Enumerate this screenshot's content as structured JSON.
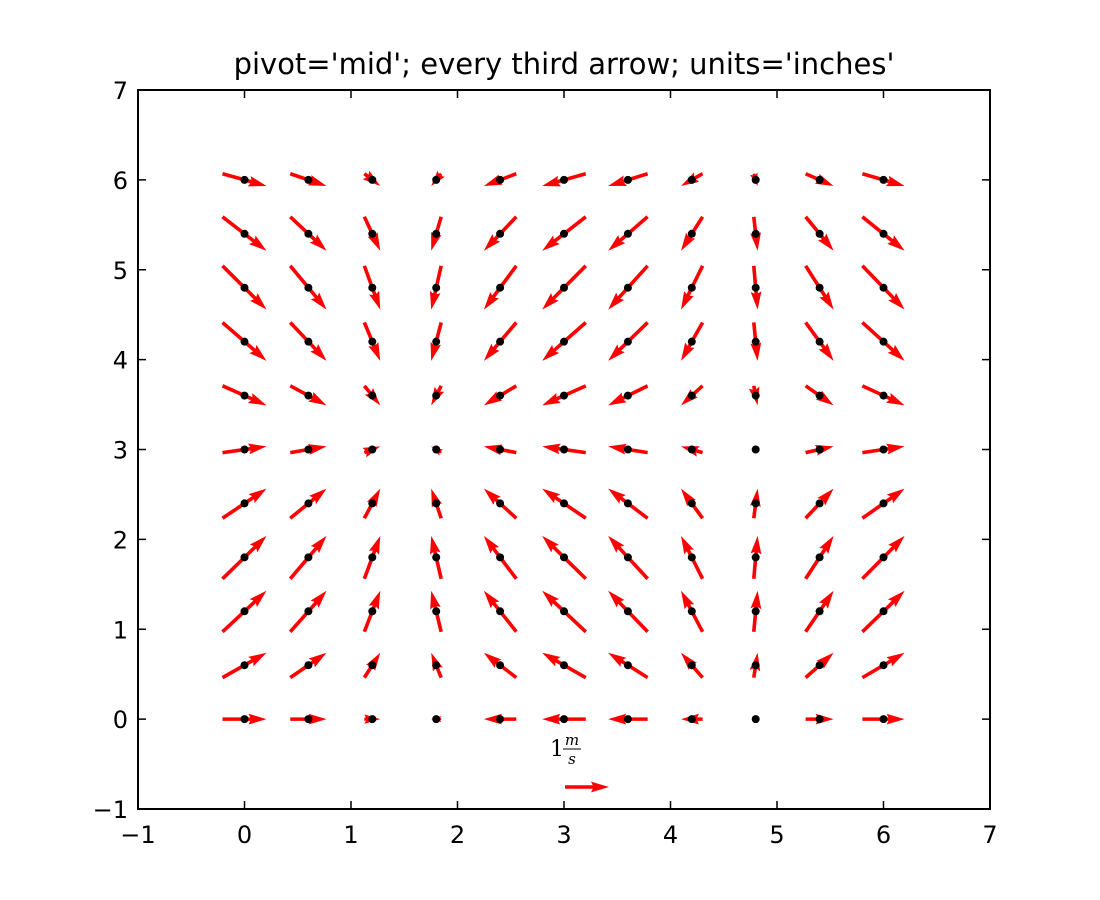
{
  "chart_data": {
    "type": "quiver",
    "title": "pivot='mid'; every third arrow; units='inches'",
    "color": "#ff0000",
    "point_color": "#000000",
    "pivot": "mid",
    "units": "inches",
    "x": [
      0,
      0.6,
      1.2,
      1.8,
      2.4,
      3.0,
      3.6,
      4.2,
      4.8,
      5.4,
      6.0
    ],
    "y": [
      0,
      0.6,
      1.2,
      1.8,
      2.4,
      3.0,
      3.6,
      4.2,
      4.8,
      5.4,
      6.0
    ],
    "u": [
      1,
      0.825,
      0.362,
      -0.227,
      -0.737,
      -0.99,
      -0.897,
      -0.49,
      0.087,
      0.635,
      0.96
    ],
    "v": [
      0,
      0.565,
      0.932,
      0.974,
      0.675,
      0.141,
      -0.443,
      -0.872,
      -0.996,
      -0.773,
      -0.279
    ],
    "key": {
      "value": 1,
      "unit_numerator": "m",
      "unit_denominator": "s"
    },
    "xlim": [
      -1,
      7
    ],
    "ylim": [
      -1,
      7
    ],
    "xticks": [
      {
        "value": -1,
        "label": "−1"
      },
      0,
      1,
      2,
      3,
      4,
      5,
      6,
      7
    ],
    "yticks": [
      {
        "value": -1,
        "label": "−1"
      },
      0,
      1,
      2,
      3,
      4,
      5,
      6,
      7
    ]
  }
}
